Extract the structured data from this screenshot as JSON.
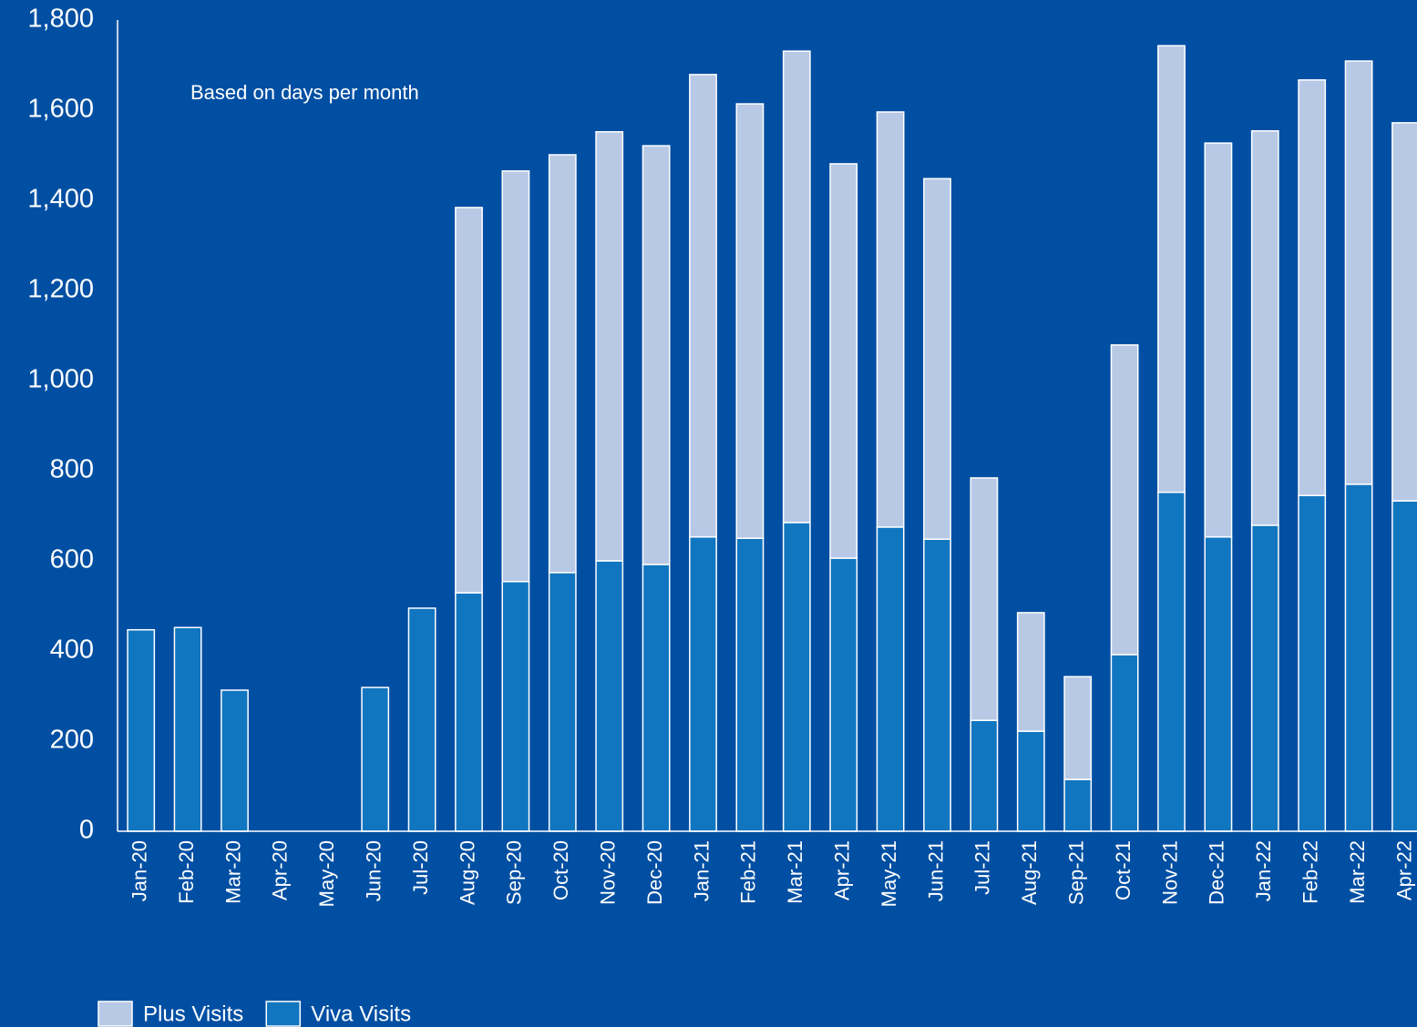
{
  "chart_data": {
    "type": "stacked_bar",
    "annotation": "Based on days per month",
    "categories": [
      "Jan-20",
      "Feb-20",
      "Mar-20",
      "Apr-20",
      "May-20",
      "Jun-20",
      "Jul-20",
      "Aug-20",
      "Sep-20",
      "Oct-20",
      "Nov-20",
      "Dec-20",
      "Jan-21",
      "Feb-21",
      "Mar-21",
      "Apr-21",
      "May-21",
      "Jun-21",
      "Jul-21",
      "Aug-21",
      "Sep-21",
      "Oct-21",
      "Nov-21",
      "Dec-21",
      "Jan-22",
      "Feb-22",
      "Mar-22",
      "Apr-22"
    ],
    "series": [
      {
        "name": "Viva Visits",
        "color": "#1176c0",
        "values": [
          447,
          452,
          313,
          0,
          0,
          319,
          495,
          529,
          554,
          574,
          600,
          592,
          653,
          650,
          685,
          606,
          675,
          648,
          246,
          222,
          115,
          392,
          752,
          653,
          679,
          745,
          770,
          733
        ]
      },
      {
        "name": "Plus Visits",
        "color": "#b8c9e6",
        "values": [
          0,
          0,
          0,
          0,
          0,
          0,
          0,
          855,
          911,
          927,
          952,
          929,
          1026,
          964,
          1046,
          875,
          921,
          800,
          538,
          263,
          228,
          687,
          991,
          874,
          875,
          922,
          939,
          839
        ]
      }
    ],
    "ylim": [
      0,
      1800
    ],
    "yticks": [
      0,
      200,
      400,
      600,
      800,
      {
        "value": 1000,
        "label": "1,000"
      },
      {
        "value": 1200,
        "label": "1,200"
      },
      {
        "value": 1400,
        "label": "1,400"
      },
      {
        "value": 1600,
        "label": "1,600"
      },
      {
        "value": 1800,
        "label": "1,800"
      }
    ],
    "grid": false,
    "legend": "bottom-left"
  }
}
